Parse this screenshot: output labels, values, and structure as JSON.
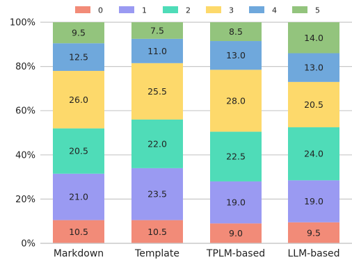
{
  "chart_data": {
    "type": "bar",
    "stacked": true,
    "normalized": true,
    "categories": [
      "Markdown",
      "Template",
      "TPLM-based",
      "LLM-based"
    ],
    "series": [
      {
        "name": "0",
        "color": "#f28b78",
        "values": [
          10.5,
          10.5,
          9.0,
          9.5
        ]
      },
      {
        "name": "1",
        "color": "#9a9af2",
        "values": [
          21.0,
          23.5,
          19.0,
          19.0
        ]
      },
      {
        "name": "2",
        "color": "#4fdcb8",
        "values": [
          20.5,
          22.0,
          22.5,
          24.0
        ]
      },
      {
        "name": "3",
        "color": "#fdd96b",
        "values": [
          26.0,
          25.5,
          28.0,
          20.5
        ]
      },
      {
        "name": "4",
        "color": "#6fa8dc",
        "values": [
          12.5,
          11.0,
          13.0,
          13.0
        ]
      },
      {
        "name": "5",
        "color": "#93c47d",
        "values": [
          9.5,
          7.5,
          8.5,
          14.0
        ]
      }
    ],
    "value_labels": [
      [
        "10.5",
        "10.5",
        "9.0",
        "9.5"
      ],
      [
        "21.0",
        "23.5",
        "19.0",
        "19.0"
      ],
      [
        "20.5",
        "22.0",
        "22.5",
        "24.0"
      ],
      [
        "26.0",
        "25.5",
        "28.0",
        "20.5"
      ],
      [
        "12.5",
        "11.0",
        "13.0",
        "13.0"
      ],
      [
        "9.5",
        "7.5",
        "8.5",
        "14.0"
      ]
    ],
    "y_ticks": [
      "0%",
      "20%",
      "40%",
      "60%",
      "80%",
      "100%"
    ],
    "ylim": [
      0,
      100
    ],
    "grid": true,
    "legend_position": "top-center"
  }
}
